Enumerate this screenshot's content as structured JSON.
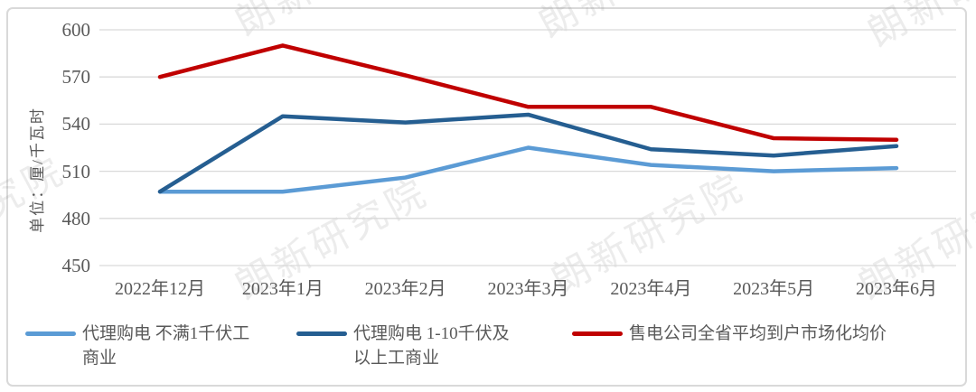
{
  "watermark": {
    "text": "朗新研究院"
  },
  "axis": {
    "unit_label": "单位：厘/千瓦时"
  },
  "chart_data": {
    "type": "line",
    "title": "",
    "categories": [
      "2022年12月",
      "2023年1月",
      "2023年2月",
      "2023年3月",
      "2023年4月",
      "2023年5月",
      "2023年6月"
    ],
    "series": [
      {
        "name": "代理购电 不满1千伏工商业",
        "label_lines": [
          "代理购电 不满1千伏工",
          "商业"
        ],
        "color": "#5B9BD5",
        "values": [
          497,
          497,
          506,
          525,
          514,
          510,
          512
        ]
      },
      {
        "name": "代理购电 1-10千伏及以上工商业",
        "label_lines": [
          "代理购电 1-10千伏及",
          "以上工商业"
        ],
        "color": "#255E91",
        "values": [
          497,
          545,
          541,
          546,
          524,
          520,
          526
        ]
      },
      {
        "name": "售电公司全省平均到户市场化均价",
        "label_lines": [
          "售电公司全省平均到户市场化均价"
        ],
        "color": "#C00000",
        "values": [
          570,
          590,
          571,
          551,
          551,
          531,
          530
        ]
      }
    ],
    "xlabel": "",
    "ylabel": "单位：厘/千瓦时",
    "ylim": [
      450,
      600
    ],
    "yticks": [
      450,
      480,
      510,
      540,
      570,
      600
    ],
    "grid": true,
    "legend_position": "bottom"
  },
  "colors": {
    "grid": "#D9D9D9",
    "axis_text": "#595959",
    "panel_border": "#D9D9D9",
    "background": "#FFFFFF"
  }
}
